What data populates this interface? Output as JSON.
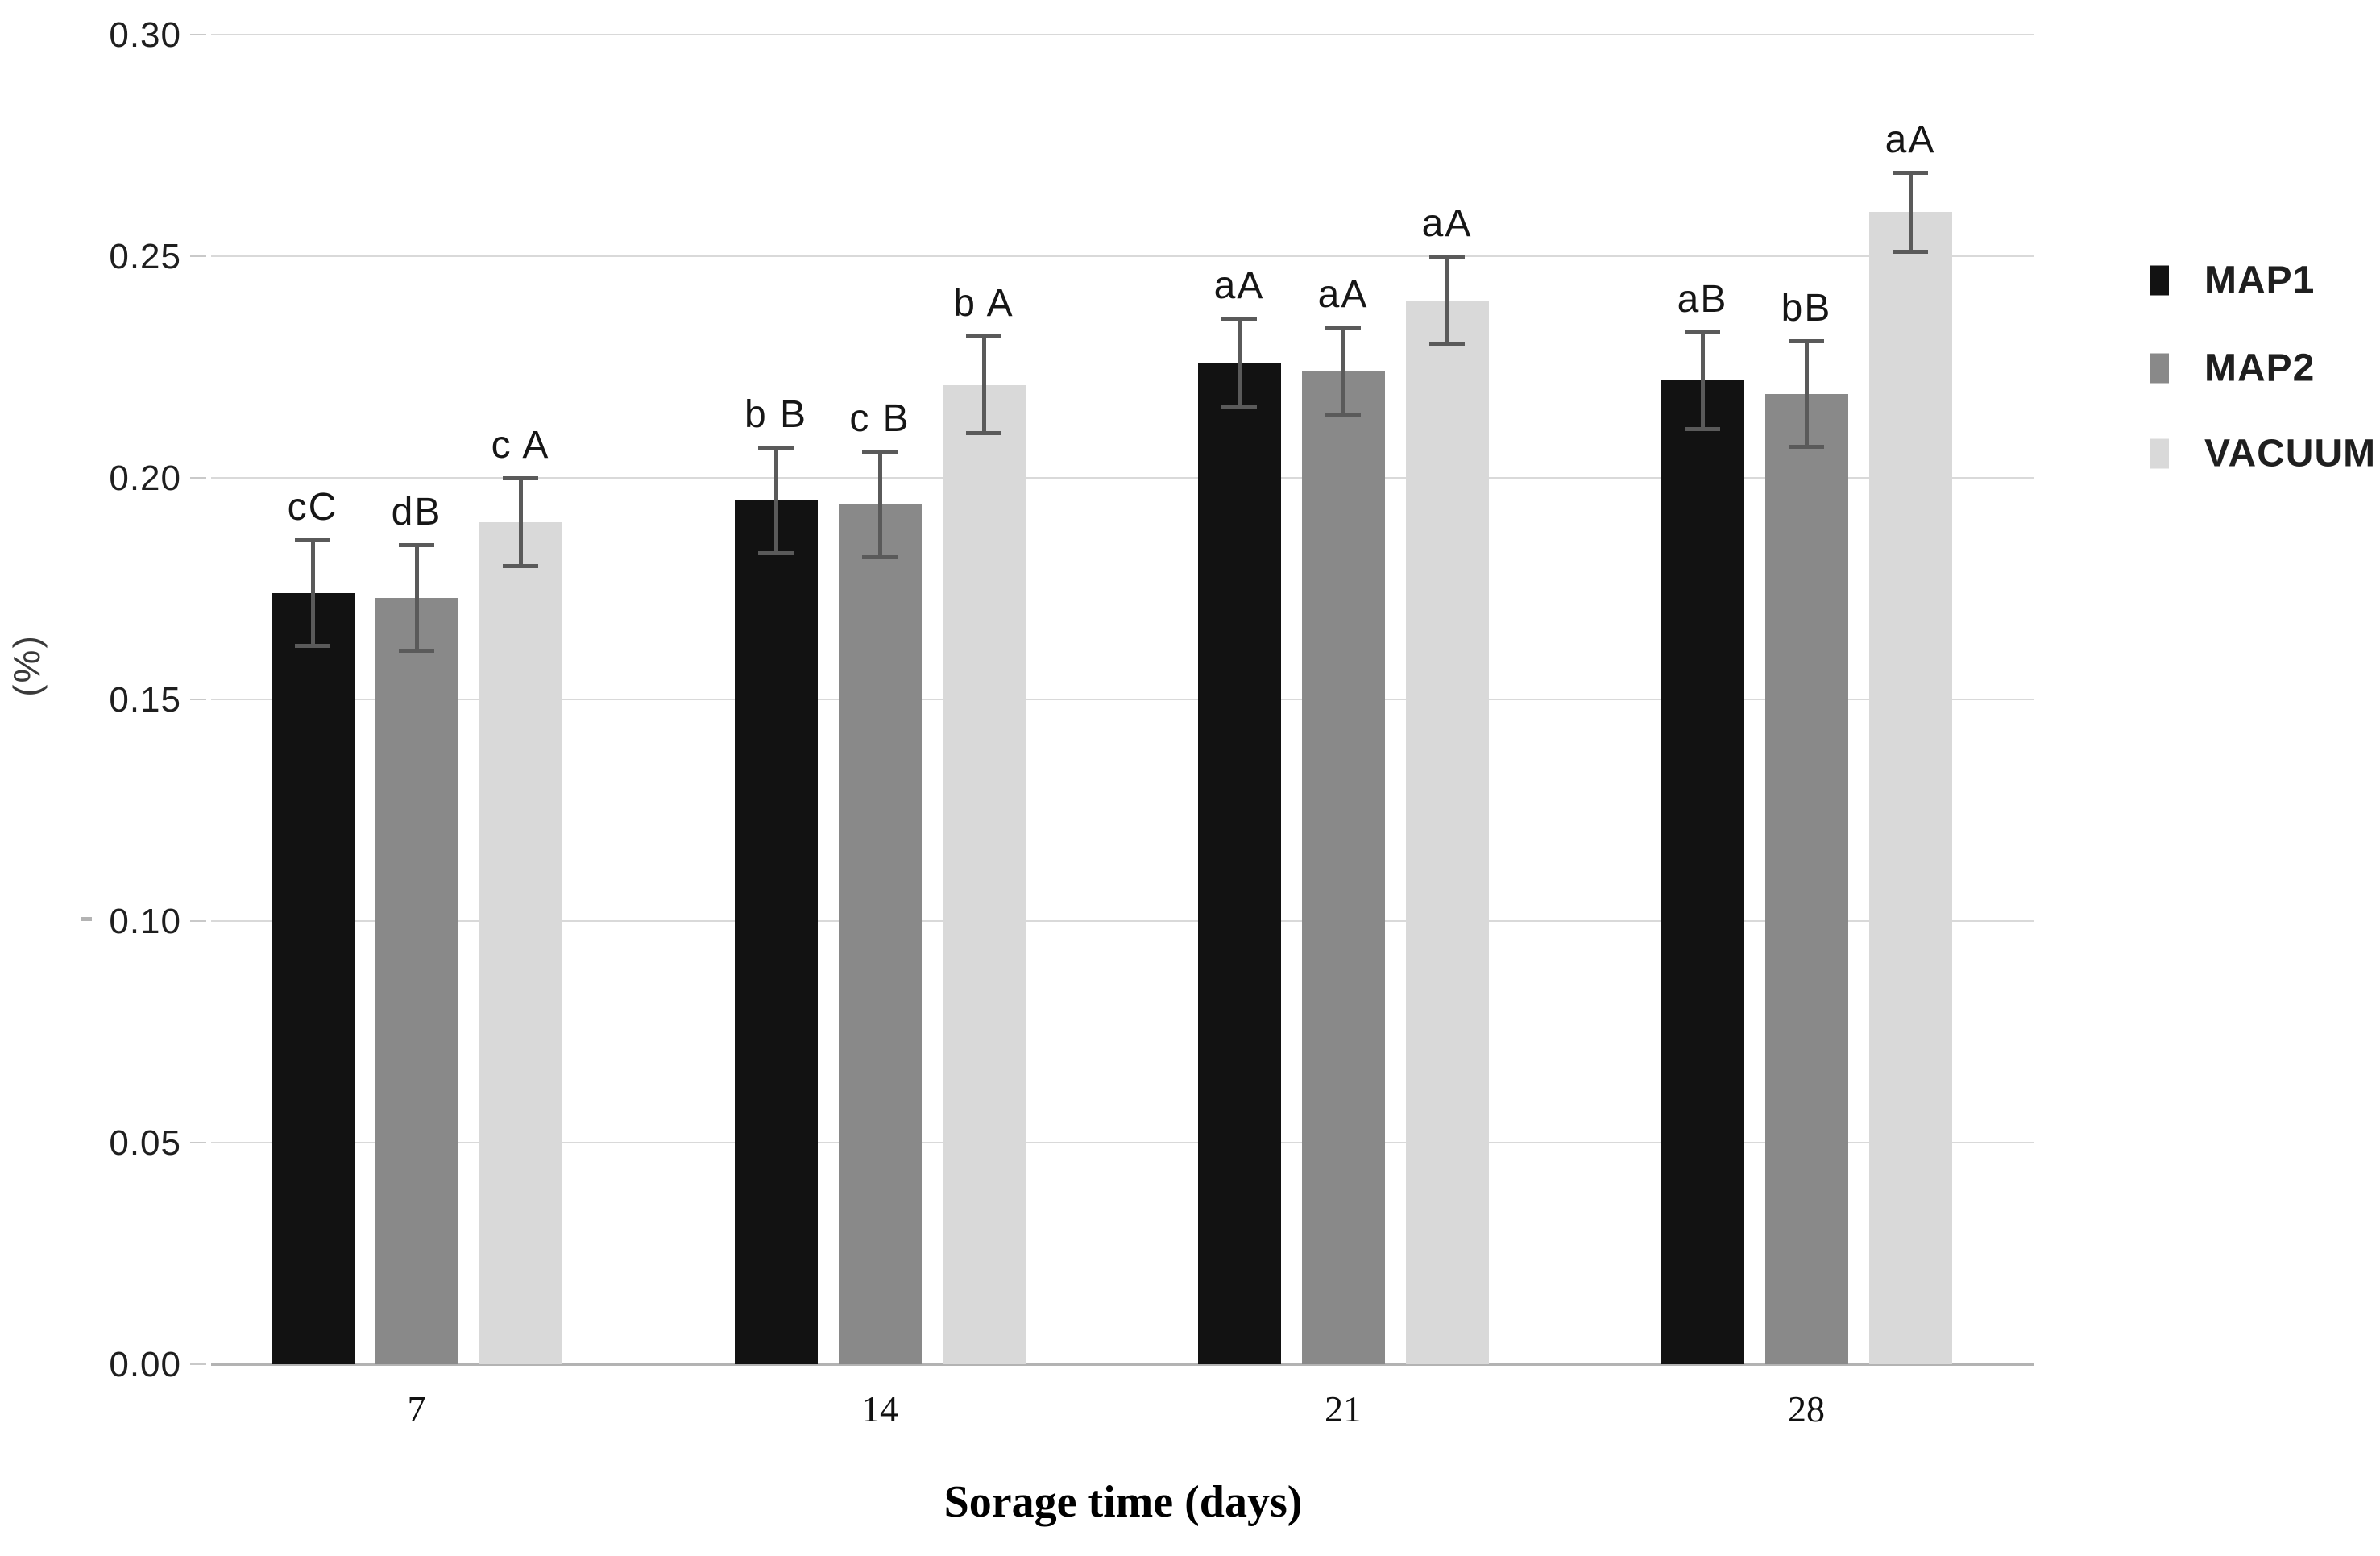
{
  "chart_data": {
    "type": "bar",
    "title": "",
    "xlabel": "Sorage time (days)",
    "ylabel": "(%)",
    "categories": [
      "7",
      "14",
      "21",
      "28"
    ],
    "y_ticks": [
      "0.30",
      "0.25",
      "0.20",
      "0.15",
      "0.10",
      "0.05",
      "0.00"
    ],
    "ylim": [
      0.0,
      0.3
    ],
    "grid": true,
    "legend_position": "right",
    "colors": {
      "gridline": "#d9d9d9",
      "axis_line": "#b3b3b3",
      "tick_stub": "#c9c9c9",
      "error_bar": "#5a5a5a",
      "text": "#1f1f1f"
    },
    "series": [
      {
        "name": "MAP1",
        "color": "#121212",
        "values": [
          0.174,
          0.195,
          0.226,
          0.222
        ],
        "errors": [
          0.012,
          0.012,
          0.01,
          0.011
        ],
        "labels": [
          "cC",
          "b B",
          "aA",
          "aB"
        ]
      },
      {
        "name": "MAP2",
        "color": "#898989",
        "values": [
          0.173,
          0.194,
          0.224,
          0.219
        ],
        "errors": [
          0.012,
          0.012,
          0.01,
          0.012
        ],
        "labels": [
          "dB",
          "c B",
          "aA",
          "bB"
        ]
      },
      {
        "name": "VACUUM",
        "color": "#d9d9d9",
        "values": [
          0.19,
          0.221,
          0.24,
          0.26
        ],
        "errors": [
          0.01,
          0.011,
          0.01,
          0.009
        ],
        "labels": [
          "c A",
          "b A",
          "aA",
          "aA"
        ]
      }
    ]
  }
}
